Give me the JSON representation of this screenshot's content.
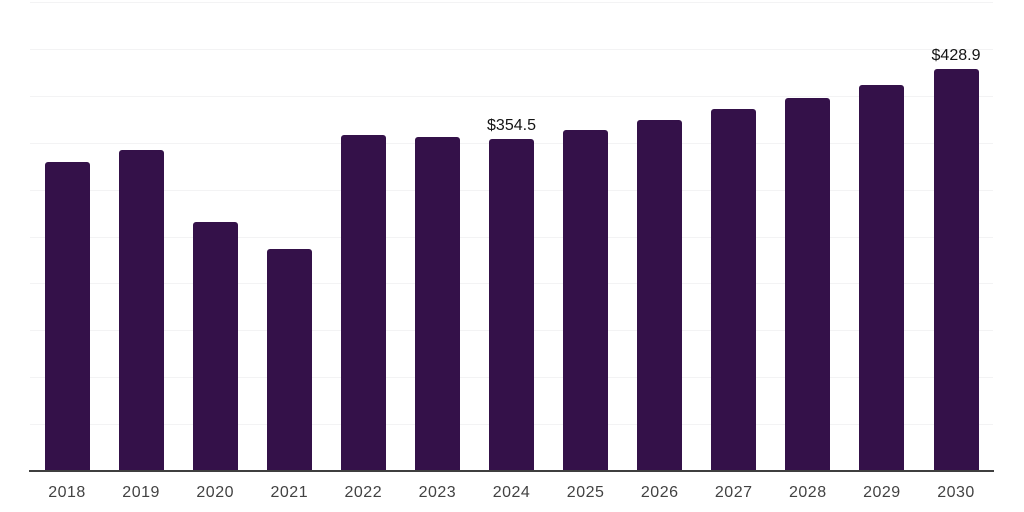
{
  "chart_data": {
    "type": "bar",
    "title": "",
    "xlabel": "",
    "ylabel": "",
    "categories": [
      "2018",
      "2019",
      "2020",
      "2021",
      "2022",
      "2023",
      "2024",
      "2025",
      "2026",
      "2027",
      "2028",
      "2029",
      "2030"
    ],
    "values": [
      329,
      342,
      266,
      237,
      358,
      356,
      354.5,
      364,
      374,
      386,
      398,
      412,
      428.9
    ],
    "point_labels": [
      "",
      "",
      "",
      "",
      "",
      "",
      "$354.5",
      "",
      "",
      "",
      "",
      "",
      "$428.9"
    ],
    "ylim": [
      0,
      500
    ],
    "grid_step": 50,
    "grid": true,
    "y_tick_labels_visible": false,
    "legend_position": "none"
  },
  "style": {
    "background": "#FFFFFF",
    "bar_color": "#341149",
    "grid_color": "#F3F3F4",
    "axis_color": "#3F3F3F",
    "tick_label_color": "#424242",
    "value_label_color": "#141414"
  }
}
